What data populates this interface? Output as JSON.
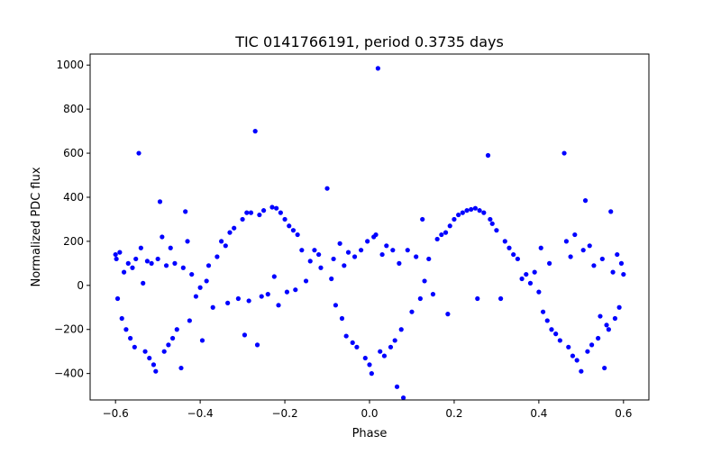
{
  "chart_data": {
    "type": "scatter",
    "title": "TIC 0141766191, period 0.3735 days",
    "xlabel": "Phase",
    "ylabel": "Normalized PDC flux",
    "xlim": [
      -0.66,
      0.66
    ],
    "ylim": [
      -520,
      1050
    ],
    "xticks": [
      -0.6,
      -0.4,
      -0.2,
      0.0,
      0.2,
      0.4,
      0.6
    ],
    "xtick_labels": [
      "−0.6",
      "−0.4",
      "−0.2",
      "0.0",
      "0.2",
      "0.4",
      "0.6"
    ],
    "yticks": [
      -400,
      -200,
      0,
      200,
      400,
      600,
      800,
      1000
    ],
    "ytick_labels": [
      "−400",
      "−200",
      "0",
      "200",
      "400",
      "600",
      "800",
      "1000"
    ],
    "grid": false,
    "marker_color": "#0000ff",
    "series": [
      {
        "points": [
          [
            -0.6,
            140
          ],
          [
            -0.598,
            120
          ],
          [
            -0.595,
            -60
          ],
          [
            -0.59,
            150
          ],
          [
            -0.585,
            -150
          ],
          [
            -0.58,
            60
          ],
          [
            -0.575,
            -200
          ],
          [
            -0.57,
            100
          ],
          [
            -0.565,
            -240
          ],
          [
            -0.56,
            80
          ],
          [
            -0.555,
            -280
          ],
          [
            -0.552,
            120
          ],
          [
            -0.545,
            600
          ],
          [
            -0.54,
            170
          ],
          [
            -0.535,
            10
          ],
          [
            -0.53,
            -300
          ],
          [
            -0.525,
            110
          ],
          [
            -0.52,
            -330
          ],
          [
            -0.515,
            100
          ],
          [
            -0.51,
            -360
          ],
          [
            -0.505,
            -390
          ],
          [
            -0.5,
            120
          ],
          [
            -0.495,
            380
          ],
          [
            -0.49,
            220
          ],
          [
            -0.485,
            -300
          ],
          [
            -0.48,
            90
          ],
          [
            -0.475,
            -270
          ],
          [
            -0.47,
            170
          ],
          [
            -0.465,
            -240
          ],
          [
            -0.46,
            100
          ],
          [
            -0.455,
            -200
          ],
          [
            -0.445,
            -375
          ],
          [
            -0.44,
            80
          ],
          [
            -0.435,
            335
          ],
          [
            -0.43,
            200
          ],
          [
            -0.425,
            -160
          ],
          [
            -0.42,
            50
          ],
          [
            -0.41,
            -50
          ],
          [
            -0.4,
            -10
          ],
          [
            -0.395,
            -250
          ],
          [
            -0.385,
            20
          ],
          [
            -0.38,
            90
          ],
          [
            -0.37,
            -100
          ],
          [
            -0.36,
            130
          ],
          [
            -0.35,
            200
          ],
          [
            -0.34,
            180
          ],
          [
            -0.335,
            -80
          ],
          [
            -0.33,
            240
          ],
          [
            -0.32,
            260
          ],
          [
            -0.31,
            -60
          ],
          [
            -0.3,
            300
          ],
          [
            -0.295,
            -225
          ],
          [
            -0.29,
            330
          ],
          [
            -0.285,
            -70
          ],
          [
            -0.28,
            330
          ],
          [
            -0.27,
            700
          ],
          [
            -0.265,
            -270
          ],
          [
            -0.26,
            320
          ],
          [
            -0.255,
            -50
          ],
          [
            -0.25,
            340
          ],
          [
            -0.24,
            -40
          ],
          [
            -0.23,
            355
          ],
          [
            -0.225,
            40
          ],
          [
            -0.22,
            350
          ],
          [
            -0.215,
            -90
          ],
          [
            -0.21,
            330
          ],
          [
            -0.2,
            300
          ],
          [
            -0.195,
            -30
          ],
          [
            -0.19,
            270
          ],
          [
            -0.18,
            250
          ],
          [
            -0.175,
            -20
          ],
          [
            -0.17,
            230
          ],
          [
            -0.16,
            160
          ],
          [
            -0.15,
            20
          ],
          [
            -0.14,
            110
          ],
          [
            -0.13,
            160
          ],
          [
            -0.12,
            140
          ],
          [
            -0.115,
            80
          ],
          [
            -0.1,
            440
          ],
          [
            -0.09,
            30
          ],
          [
            -0.085,
            120
          ],
          [
            -0.08,
            -90
          ],
          [
            -0.07,
            190
          ],
          [
            -0.065,
            -150
          ],
          [
            -0.06,
            90
          ],
          [
            -0.055,
            -230
          ],
          [
            -0.05,
            150
          ],
          [
            -0.04,
            -260
          ],
          [
            -0.035,
            130
          ],
          [
            -0.03,
            -280
          ],
          [
            -0.02,
            160
          ],
          [
            -0.01,
            -330
          ],
          [
            -0.005,
            200
          ],
          [
            0.0,
            -360
          ],
          [
            0.005,
            -400
          ],
          [
            0.01,
            220
          ],
          [
            0.015,
            230
          ],
          [
            0.02,
            985
          ],
          [
            0.025,
            -300
          ],
          [
            0.03,
            140
          ],
          [
            0.035,
            -320
          ],
          [
            0.04,
            180
          ],
          [
            0.05,
            -280
          ],
          [
            0.055,
            160
          ],
          [
            0.06,
            -250
          ],
          [
            0.065,
            -460
          ],
          [
            0.07,
            100
          ],
          [
            0.075,
            -200
          ],
          [
            0.08,
            -510
          ],
          [
            0.09,
            160
          ],
          [
            0.1,
            -120
          ],
          [
            0.11,
            130
          ],
          [
            0.12,
            -60
          ],
          [
            0.125,
            300
          ],
          [
            0.13,
            20
          ],
          [
            0.14,
            120
          ],
          [
            0.15,
            -40
          ],
          [
            0.16,
            210
          ],
          [
            0.17,
            230
          ],
          [
            0.18,
            240
          ],
          [
            0.185,
            -130
          ],
          [
            0.19,
            270
          ],
          [
            0.2,
            300
          ],
          [
            0.21,
            320
          ],
          [
            0.22,
            330
          ],
          [
            0.23,
            340
          ],
          [
            0.24,
            345
          ],
          [
            0.25,
            350
          ],
          [
            0.255,
            -60
          ],
          [
            0.26,
            340
          ],
          [
            0.27,
            330
          ],
          [
            0.28,
            590
          ],
          [
            0.285,
            300
          ],
          [
            0.29,
            280
          ],
          [
            0.3,
            250
          ],
          [
            0.31,
            -60
          ],
          [
            0.32,
            200
          ],
          [
            0.33,
            170
          ],
          [
            0.34,
            140
          ],
          [
            0.35,
            120
          ],
          [
            0.36,
            30
          ],
          [
            0.37,
            50
          ],
          [
            0.38,
            10
          ],
          [
            0.39,
            60
          ],
          [
            0.4,
            -30
          ],
          [
            0.405,
            170
          ],
          [
            0.41,
            -120
          ],
          [
            0.42,
            -160
          ],
          [
            0.425,
            100
          ],
          [
            0.43,
            -200
          ],
          [
            0.44,
            -220
          ],
          [
            0.45,
            -250
          ],
          [
            0.46,
            600
          ],
          [
            0.465,
            200
          ],
          [
            0.47,
            -280
          ],
          [
            0.475,
            130
          ],
          [
            0.48,
            -320
          ],
          [
            0.485,
            230
          ],
          [
            0.49,
            -340
          ],
          [
            0.5,
            -390
          ],
          [
            0.505,
            160
          ],
          [
            0.51,
            385
          ],
          [
            0.515,
            -300
          ],
          [
            0.52,
            180
          ],
          [
            0.525,
            -270
          ],
          [
            0.53,
            90
          ],
          [
            0.54,
            -240
          ],
          [
            0.545,
            -140
          ],
          [
            0.55,
            120
          ],
          [
            0.555,
            -375
          ],
          [
            0.56,
            -180
          ],
          [
            0.565,
            -200
          ],
          [
            0.57,
            335
          ],
          [
            0.575,
            60
          ],
          [
            0.58,
            -150
          ],
          [
            0.585,
            140
          ],
          [
            0.59,
            -100
          ],
          [
            0.595,
            100
          ],
          [
            0.6,
            50
          ]
        ]
      }
    ]
  }
}
